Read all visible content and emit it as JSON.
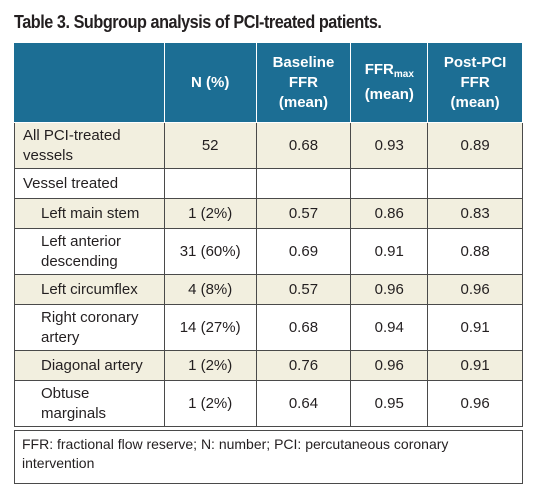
{
  "title": "Table 3. Subgroup analysis of PCI-treated patients.",
  "headers": {
    "col1": "",
    "col2": "N (%)",
    "col3": [
      "Baseline",
      "FFR",
      "(mean)"
    ],
    "col4_main": "FFR",
    "col4_sub": "max",
    "col4_line2": "(mean)",
    "col5": [
      "Post-PCI",
      "FFR",
      "(mean)"
    ]
  },
  "rows": [
    {
      "label": [
        "All PCI-treated",
        "vessels"
      ],
      "n": "52",
      "baseline": "0.68",
      "ffrmax": "0.93",
      "post": "0.89"
    },
    {
      "label": [
        "Vessel treated"
      ],
      "n": "",
      "baseline": "",
      "ffrmax": "",
      "post": ""
    },
    {
      "label": [
        "Left main stem"
      ],
      "n": "1 (2%)",
      "baseline": "0.57",
      "ffrmax": "0.86",
      "post": "0.83"
    },
    {
      "label": [
        "Left anterior",
        "descending"
      ],
      "n": "31 (60%)",
      "baseline": "0.69",
      "ffrmax": "0.91",
      "post": "0.88"
    },
    {
      "label": [
        "Left circumflex"
      ],
      "n": "4 (8%)",
      "baseline": "0.57",
      "ffrmax": "0.96",
      "post": "0.96"
    },
    {
      "label": [
        "Right coronary",
        "artery"
      ],
      "n": "14 (27%)",
      "baseline": "0.68",
      "ffrmax": "0.94",
      "post": "0.91"
    },
    {
      "label": [
        "Diagonal artery"
      ],
      "n": "1 (2%)",
      "baseline": "0.76",
      "ffrmax": "0.96",
      "post": "0.91"
    },
    {
      "label": [
        "Obtuse",
        "marginals"
      ],
      "n": "1 (2%)",
      "baseline": "0.64",
      "ffrmax": "0.95",
      "post": "0.96"
    }
  ],
  "footnote": "FFR: fractional flow reserve; N: number; PCI: percutaneous coronary intervention",
  "colors": {
    "header_bg": "#1c6e94",
    "shaded_row": "#f2efdf"
  }
}
